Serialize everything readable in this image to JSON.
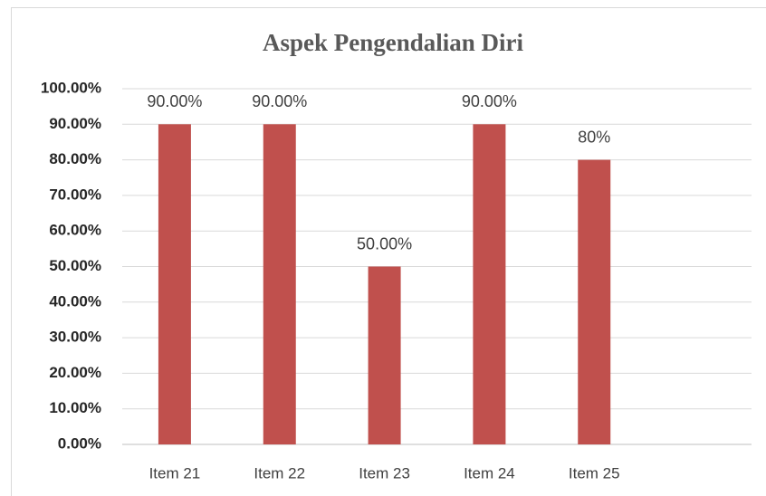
{
  "chart_data": {
    "type": "bar",
    "title": "Aspek Pengendalian Diri",
    "categories": [
      "Item 21",
      "Item 22",
      "Item 23",
      "Item 24",
      "Item 25",
      null
    ],
    "values": [
      90,
      90,
      50,
      90,
      80,
      null
    ],
    "value_labels": [
      "90.00%",
      "90.00%",
      "50.00%",
      "90.00%",
      "80%",
      null
    ],
    "color": "#c0504d",
    "ylim": [
      0,
      100
    ],
    "yticks": [
      {
        "value": 0,
        "label": "0.00%"
      },
      {
        "value": 10,
        "label": "10.00%"
      },
      {
        "value": 20,
        "label": "20.00%"
      },
      {
        "value": 30,
        "label": "30.00%"
      },
      {
        "value": 40,
        "label": "40.00%"
      },
      {
        "value": 50,
        "label": "50.00%"
      },
      {
        "value": 60,
        "label": "60.00%"
      },
      {
        "value": 70,
        "label": "70.00%"
      },
      {
        "value": 80,
        "label": "80.00%"
      },
      {
        "value": 90,
        "label": "90.00%"
      },
      {
        "value": 100,
        "label": "100.00%"
      }
    ],
    "grid": true
  }
}
